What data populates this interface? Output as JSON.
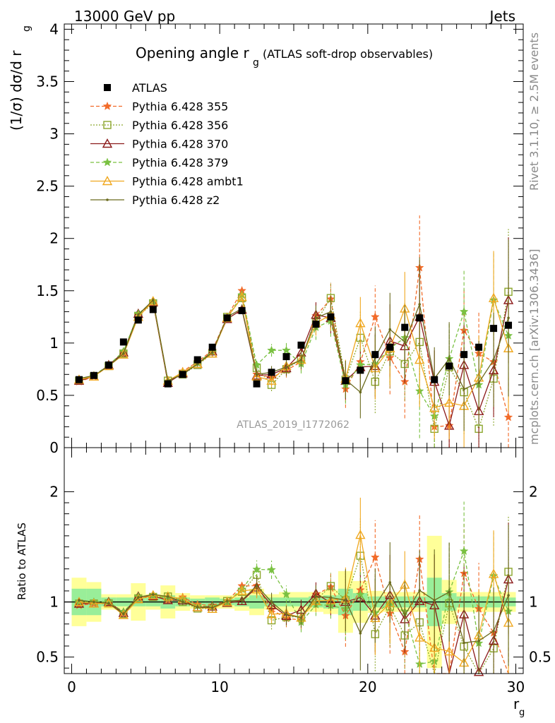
{
  "header": {
    "energy": "13000 GeV pp",
    "category": "Jets",
    "rivet": "Rivet 3.1.10, ≥ 2.5M events",
    "mcplots": "mcplots.cern.ch [arXiv:1306.3436]",
    "watermark": "ATLAS_2019_I1772062"
  },
  "chart_data": {
    "type": "line",
    "title": "Opening angle r",
    "title_sub": "g",
    "title_suffix": "(ATLAS soft-drop observables)",
    "ylabel": "(1/σ) dσ/d r",
    "ylabel_sub": "g",
    "xlabel": "r",
    "xlabel_sub": "g",
    "ratio_ylabel": "Ratio to ATLAS",
    "xlim": [
      -0.5,
      30.5
    ],
    "ylim": [
      0,
      4.05
    ],
    "ratio_ylim": [
      0.35,
      2.4
    ],
    "x_ticks": [
      "0",
      "10",
      "20",
      "30"
    ],
    "y_ticks": [
      "0",
      "0.5",
      "1",
      "1.5",
      "2",
      "2.5",
      "3",
      "3.5",
      "4"
    ],
    "ratio_ticks": [
      "0.5",
      "1",
      "2"
    ],
    "grid": false,
    "legend_position": "top-left",
    "x": [
      0.5,
      1.5,
      2.5,
      3.5,
      4.5,
      5.5,
      6.5,
      7.5,
      8.5,
      9.5,
      10.5,
      11.5,
      12.5,
      13.5,
      14.5,
      15.5,
      16.5,
      17.5,
      18.5,
      19.5,
      20.5,
      21.5,
      22.5,
      23.5,
      24.5,
      25.5,
      26.5,
      27.5,
      28.5,
      29.5
    ],
    "data": {
      "name": "ATLAS",
      "color": "#000000",
      "values": [
        0.65,
        0.69,
        0.79,
        1.01,
        1.22,
        1.32,
        0.61,
        0.7,
        0.84,
        0.96,
        1.24,
        1.31,
        0.61,
        0.72,
        0.87,
        0.98,
        1.18,
        1.25,
        0.64,
        0.74,
        0.89,
        0.96,
        1.15,
        1.24,
        0.65,
        0.78,
        0.89,
        0.96,
        1.14,
        1.17
      ],
      "ratio_band_inner": [
        0.12,
        0.12,
        0.04,
        0.04,
        0.04,
        0.04,
        0.06,
        0.04,
        0.03,
        0.04,
        0.03,
        0.04,
        0.06,
        0.04,
        0.04,
        0.04,
        0.05,
        0.06,
        0.12,
        0.08,
        0.05,
        0.05,
        0.05,
        0.05,
        0.22,
        0.08,
        0.05,
        0.05,
        0.05,
        0.04
      ],
      "ratio_band_outer": [
        0.22,
        0.18,
        0.07,
        0.07,
        0.17,
        0.07,
        0.15,
        0.08,
        0.06,
        0.06,
        0.06,
        0.08,
        0.12,
        0.07,
        0.09,
        0.09,
        0.09,
        0.11,
        0.28,
        0.19,
        0.1,
        0.09,
        0.09,
        0.09,
        0.6,
        0.2,
        0.09,
        0.09,
        0.09,
        0.09
      ]
    },
    "series": [
      {
        "name": "Pythia 6.428 355",
        "color": "#f26b29",
        "dash": "5,3",
        "marker": "star",
        "values": [
          0.63,
          0.68,
          0.78,
          0.91,
          1.27,
          1.4,
          0.62,
          0.73,
          0.82,
          0.93,
          1.25,
          1.5,
          0.7,
          0.67,
          0.74,
          0.82,
          1.26,
          1.42,
          0.56,
          0.82,
          1.25,
          0.86,
          0.63,
          1.72,
          0.2,
          0.21,
          1.12,
          0.9,
          0.82,
          0.29
        ],
        "errors": [
          0.01,
          0.01,
          0.01,
          0.02,
          0.02,
          0.02,
          0.02,
          0.02,
          0.02,
          0.03,
          0.03,
          0.04,
          0.05,
          0.06,
          0.07,
          0.09,
          0.12,
          0.15,
          0.18,
          0.25,
          0.3,
          0.35,
          0.35,
          0.5,
          0.3,
          0.3,
          0.4,
          0.4,
          0.45,
          0.4
        ]
      },
      {
        "name": "Pythia 6.428 356",
        "color": "#8ca62d",
        "dash": "2,2",
        "marker": "square",
        "values": [
          0.64,
          0.68,
          0.78,
          0.9,
          1.26,
          1.38,
          0.64,
          0.7,
          0.79,
          0.9,
          1.25,
          1.43,
          0.76,
          0.6,
          0.75,
          0.85,
          1.2,
          1.43,
          0.65,
          1.05,
          0.63,
          0.92,
          0.8,
          1.01,
          0.18,
          0.77,
          0.53,
          0.18,
          0.66,
          1.49
        ],
        "errors": [
          0.01,
          0.01,
          0.01,
          0.02,
          0.02,
          0.02,
          0.02,
          0.02,
          0.02,
          0.03,
          0.03,
          0.04,
          0.05,
          0.06,
          0.07,
          0.09,
          0.12,
          0.15,
          0.18,
          0.25,
          0.3,
          0.35,
          0.35,
          0.45,
          0.3,
          0.35,
          0.4,
          0.4,
          0.45,
          0.6
        ]
      },
      {
        "name": "Pythia 6.428 370",
        "color": "#8b1a1a",
        "dash": "",
        "marker": "triangle",
        "values": [
          0.64,
          0.68,
          0.79,
          0.91,
          1.28,
          1.39,
          0.62,
          0.71,
          0.8,
          0.92,
          1.23,
          1.32,
          0.69,
          0.7,
          0.76,
          0.91,
          1.27,
          1.24,
          0.64,
          0.77,
          0.78,
          1.02,
          0.97,
          1.25,
          0.63,
          0.21,
          0.79,
          0.35,
          0.74,
          1.41
        ],
        "errors": [
          0.01,
          0.01,
          0.01,
          0.02,
          0.02,
          0.02,
          0.02,
          0.02,
          0.02,
          0.03,
          0.03,
          0.04,
          0.05,
          0.06,
          0.07,
          0.09,
          0.12,
          0.15,
          0.18,
          0.25,
          0.3,
          0.35,
          0.35,
          0.45,
          0.3,
          0.3,
          0.4,
          0.4,
          0.45,
          0.6
        ]
      },
      {
        "name": "Pythia 6.428 379",
        "color": "#7ac142",
        "dash": "5,3",
        "marker": "star",
        "values": [
          0.65,
          0.69,
          0.79,
          0.92,
          1.28,
          1.4,
          0.63,
          0.72,
          0.81,
          0.92,
          1.24,
          1.46,
          0.79,
          0.93,
          0.93,
          0.8,
          1.15,
          1.21,
          0.6,
          0.79,
          0.8,
          0.95,
          1.05,
          0.54,
          0.3,
          0.85,
          1.3,
          0.6,
          1.41,
          1.07
        ],
        "errors": [
          0.01,
          0.01,
          0.01,
          0.02,
          0.02,
          0.02,
          0.02,
          0.02,
          0.02,
          0.03,
          0.03,
          0.04,
          0.05,
          0.06,
          0.07,
          0.09,
          0.12,
          0.15,
          0.18,
          0.25,
          0.3,
          0.35,
          0.35,
          0.45,
          0.3,
          0.35,
          0.4,
          0.4,
          0.45,
          0.6
        ]
      },
      {
        "name": "Pythia 6.428 ambt1",
        "color": "#f0a820",
        "dash": "",
        "marker": "triangle",
        "values": [
          0.65,
          0.68,
          0.78,
          0.89,
          1.25,
          1.4,
          0.64,
          0.72,
          0.8,
          0.9,
          1.24,
          1.44,
          0.68,
          0.64,
          0.78,
          0.84,
          1.19,
          1.27,
          0.66,
          1.19,
          0.76,
          0.95,
          1.33,
          0.84,
          0.38,
          0.43,
          0.4,
          0.67,
          1.43,
          0.95
        ],
        "errors": [
          0.01,
          0.01,
          0.01,
          0.02,
          0.02,
          0.02,
          0.02,
          0.02,
          0.02,
          0.03,
          0.03,
          0.04,
          0.05,
          0.06,
          0.07,
          0.09,
          0.12,
          0.15,
          0.18,
          0.25,
          0.3,
          0.35,
          0.35,
          0.45,
          0.3,
          0.35,
          0.4,
          0.4,
          0.45,
          0.6
        ]
      },
      {
        "name": "Pythia 6.428 z2",
        "color": "#6b6b1f",
        "dash": "",
        "marker": "dot",
        "values": [
          0.66,
          0.69,
          0.78,
          0.9,
          1.27,
          1.41,
          0.64,
          0.7,
          0.8,
          0.91,
          1.25,
          1.33,
          0.7,
          0.72,
          0.77,
          0.84,
          1.24,
          1.3,
          0.65,
          0.53,
          0.86,
          1.13,
          1.01,
          1.37,
          0.66,
          0.85,
          0.56,
          0.62,
          0.84,
          1.24
        ],
        "errors": [
          0.01,
          0.01,
          0.01,
          0.02,
          0.02,
          0.02,
          0.02,
          0.02,
          0.02,
          0.03,
          0.03,
          0.04,
          0.05,
          0.06,
          0.07,
          0.09,
          0.12,
          0.15,
          0.18,
          0.25,
          0.3,
          0.35,
          0.35,
          0.45,
          0.3,
          0.35,
          0.4,
          0.4,
          0.45,
          0.75
        ]
      }
    ]
  }
}
